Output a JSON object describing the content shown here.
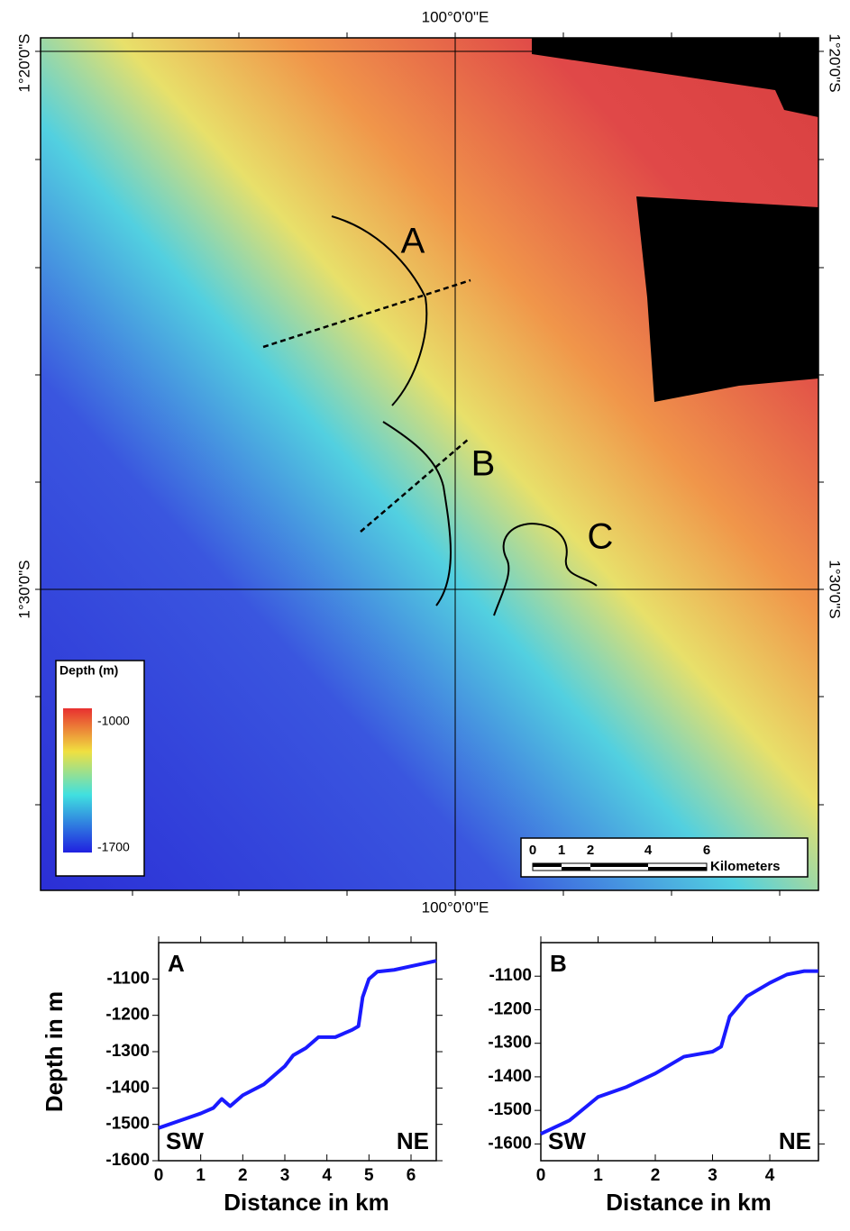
{
  "map": {
    "top_label": "100°0'0\"E",
    "bottom_label": "100°0'0\"E",
    "left_labels": [
      "1°20'0\"S",
      "1°30'0\"S"
    ],
    "right_labels": [
      "1°20'0\"S",
      "1°30'0\"S"
    ],
    "legend": {
      "title": "Depth (m)",
      "max": "-1000",
      "min": "-1700"
    },
    "scale": {
      "ticks": [
        "0",
        "1",
        "2",
        "4",
        "6"
      ],
      "unit": "Kilometers"
    },
    "features": [
      "A",
      "B",
      "C"
    ]
  },
  "chart_data": [
    {
      "type": "line",
      "title": "A",
      "x_label": "Distance in km",
      "y_label": "Depth in m",
      "left_note": "SW",
      "right_note": "NE",
      "xlim": [
        0,
        6.6
      ],
      "xticks": [
        0,
        1,
        2,
        3,
        4,
        5,
        6
      ],
      "ylim": [
        -1600,
        -1000
      ],
      "yticks": [
        -1600,
        -1500,
        -1400,
        -1300,
        -1200,
        -1100
      ],
      "series": [
        {
          "color": "#1a1aff",
          "x": [
            0,
            0.5,
            1,
            1.3,
            1.5,
            1.7,
            2,
            2.5,
            3,
            3.2,
            3.5,
            3.8,
            4.2,
            4.6,
            4.75,
            4.85,
            5,
            5.2,
            5.6,
            6,
            6.6
          ],
          "values": [
            -1510,
            -1490,
            -1470,
            -1455,
            -1430,
            -1450,
            -1420,
            -1390,
            -1340,
            -1310,
            -1290,
            -1260,
            -1260,
            -1240,
            -1230,
            -1150,
            -1100,
            -1080,
            -1075,
            -1065,
            -1050
          ]
        }
      ]
    },
    {
      "type": "line",
      "title": "B",
      "x_label": "Distance in km",
      "left_note": "SW",
      "right_note": "NE",
      "xlim": [
        0,
        4.85
      ],
      "xticks": [
        0,
        1,
        2,
        3,
        4
      ],
      "ylim": [
        -1650,
        -1000
      ],
      "yticks": [
        -1600,
        -1500,
        -1400,
        -1300,
        -1200,
        -1100
      ],
      "series": [
        {
          "color": "#1a1aff",
          "x": [
            0,
            0.5,
            1,
            1.5,
            2,
            2.5,
            3,
            3.15,
            3.3,
            3.6,
            4,
            4.3,
            4.6,
            4.85
          ],
          "values": [
            -1570,
            -1530,
            -1460,
            -1430,
            -1390,
            -1340,
            -1325,
            -1310,
            -1220,
            -1160,
            -1120,
            -1095,
            -1085,
            -1085
          ]
        }
      ]
    }
  ]
}
